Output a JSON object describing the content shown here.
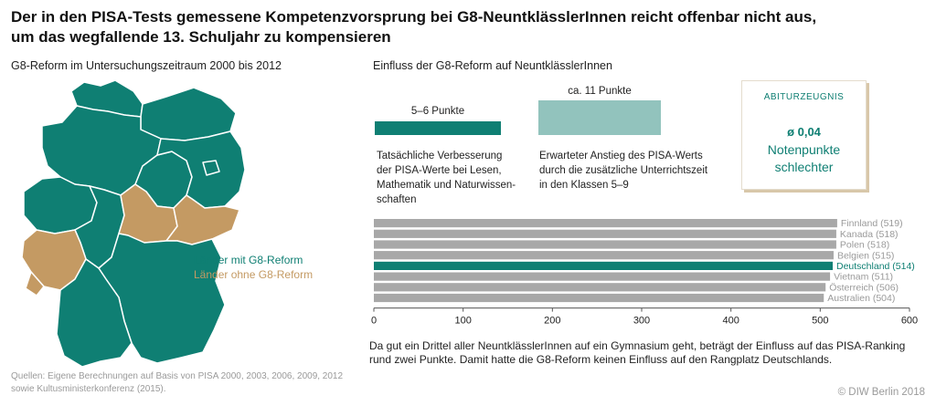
{
  "title": {
    "line1": "Der in den PISA-Tests gemessene Kompetenzvorsprung bei G8-NeuntklässlerInnen reicht offenbar nicht aus,",
    "line2": "um das wegfallende 13. Schuljahr zu kompensieren"
  },
  "map": {
    "subtitle": "G8-Reform im Untersuchungszeitraum 2000 bis 2012",
    "legend_g8": "Länder mit G8-Reform",
    "legend_no_g8": "Länder ohne G8-Reform",
    "colors": {
      "g8": "#0f7f73",
      "no_g8": "#c49a63"
    }
  },
  "effect": {
    "subtitle": "Einfluss der G8-Reform auf NeuntklässlerInnen",
    "actual": {
      "label": "5–6 Punkte",
      "text": [
        "Tatsächliche Verbesserung",
        "der PISA-Werte bei Lesen,",
        "Mathematik und Naturwissen-",
        "schaften"
      ],
      "color": "#0f7f73"
    },
    "expected": {
      "label": "ca. 11 Punkte",
      "text": [
        "Erwarteter Anstieg des PISA-Werts",
        "durch die zusätzliche Unterrichtszeit",
        "in den Klassen 5–9"
      ],
      "color": "#92c3bd"
    }
  },
  "abitur": {
    "heading": "ABITURZEUGNIS",
    "value": "ø 0,04",
    "unit_line1": "Notenpunkte",
    "unit_line2": "schlechter"
  },
  "chart_data": {
    "type": "bar",
    "orientation": "horizontal",
    "categories": [
      "Finnland",
      "Kanada",
      "Polen",
      "Belgien",
      "Deutschland",
      "Vietnam",
      "Österreich",
      "Australien"
    ],
    "labels": [
      "Finnland (519)",
      "Kanada (518)",
      "Polen (518)",
      "Belgien (515)",
      "Deutschland (514)",
      "Vietnam (511)",
      "Österreich (506)",
      "Australien (504)"
    ],
    "values": [
      519,
      518,
      518,
      515,
      514,
      511,
      506,
      504
    ],
    "highlight": "Deutschland",
    "xlim": [
      0,
      600
    ],
    "xticks": [
      0,
      100,
      200,
      300,
      400,
      500,
      600
    ],
    "colors": {
      "bar": "#a8a8a8",
      "highlight": "#0f7f73",
      "label": "#9a9a9a"
    }
  },
  "note": "Da gut ein Drittel aller NeuntklässlerInnen auf ein Gymnasium geht, beträgt der Einfluss auf das PISA-Ranking rund zwei Punkte. Damit hatte die G8-Reform keinen Einfluss auf den Rangplatz Deutschlands.",
  "sources": "Quellen: Eigene Berechnungen auf Basis von PISA 2000, 2003, 2006, 2009, 2012 sowie Kultusministerkonferenz (2015).",
  "credit": "© DIW Berlin 2018"
}
